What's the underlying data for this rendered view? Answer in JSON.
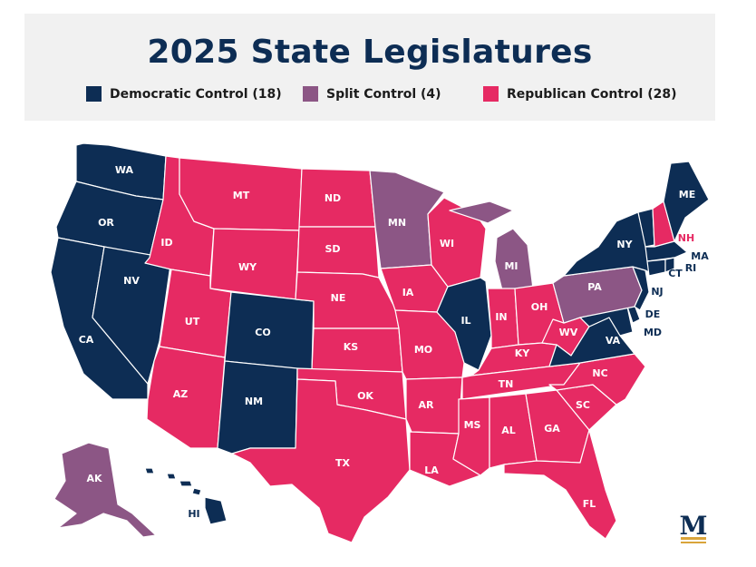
{
  "title": "2025 State Legislatures",
  "colors": {
    "democratic": "#0d2d54",
    "split": "#8c5685",
    "republican": "#e62a63"
  },
  "legend": [
    {
      "label": "Democratic Control (18)",
      "key": "democratic"
    },
    {
      "label": "Split Control (4)",
      "key": "split"
    },
    {
      "label": "Republican Control (28)",
      "key": "republican"
    }
  ],
  "states": {
    "WA": "democratic",
    "OR": "democratic",
    "CA": "democratic",
    "NV": "democratic",
    "CO": "democratic",
    "NM": "democratic",
    "IL": "democratic",
    "NY": "democratic",
    "VT": "democratic",
    "ME": "democratic",
    "MA": "democratic",
    "RI": "democratic",
    "CT": "democratic",
    "NJ": "democratic",
    "DE": "democratic",
    "MD": "democratic",
    "VA": "democratic",
    "HI": "democratic",
    "MN": "split",
    "MI": "split",
    "PA": "split",
    "AK": "split",
    "ID": "republican",
    "MT": "republican",
    "WY": "republican",
    "UT": "republican",
    "AZ": "republican",
    "ND": "republican",
    "SD": "republican",
    "NE": "republican",
    "KS": "republican",
    "OK": "republican",
    "TX": "republican",
    "IA": "republican",
    "MO": "republican",
    "AR": "republican",
    "LA": "republican",
    "WI": "republican",
    "IN": "republican",
    "OH": "republican",
    "KY": "republican",
    "TN": "republican",
    "MS": "republican",
    "AL": "republican",
    "GA": "republican",
    "FL": "republican",
    "SC": "republican",
    "NC": "republican",
    "WV": "republican",
    "NH": "republican"
  },
  "logo_letter": "M"
}
